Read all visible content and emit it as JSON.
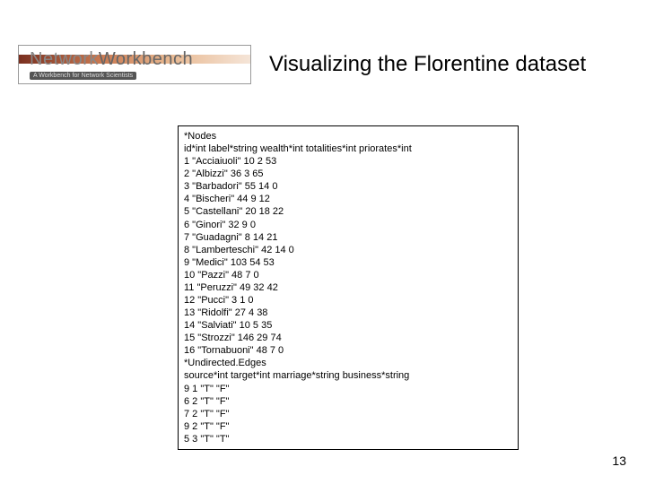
{
  "header": {
    "logo_main": "Network",
    "logo_secondary": "Workbench",
    "logo_tagline": "A Workbench for Network Scientists",
    "title": "Visualizing the Florentine dataset"
  },
  "databox": {
    "lines": [
      "*Nodes",
      "id*int label*string wealth*int totalities*int priorates*int",
      "1 \"Acciaiuoli\" 10 2 53",
      "2 \"Albizzi\" 36 3 65",
      "3 \"Barbadori\" 55 14 0",
      "4 \"Bischeri\" 44 9 12",
      "5 \"Castellani\" 20 18 22",
      "6 \"Ginori\" 32 9 0",
      "7 \"Guadagni\" 8 14 21",
      "8 \"Lamberteschi\" 42 14 0",
      "9 \"Medici\" 103 54 53",
      "10 \"Pazzi\" 48 7 0",
      "11 \"Peruzzi\" 49 32 42",
      "12 \"Pucci\" 3 1 0",
      "13 \"Ridolfi\" 27 4 38",
      "14 \"Salviati\" 10 5 35",
      "15 \"Strozzi\" 146 29 74",
      "16 \"Tornabuoni\" 48 7 0",
      "*Undirected.Edges",
      "source*int target*int marriage*string business*string",
      "9 1 \"T\" \"F\"",
      "6 2 \"T\" \"F\"",
      "7 2 \"T\" \"F\"",
      "9 2 \"T\" \"F\"",
      "5 3 \"T\" \"T\""
    ]
  },
  "page_number": "13"
}
